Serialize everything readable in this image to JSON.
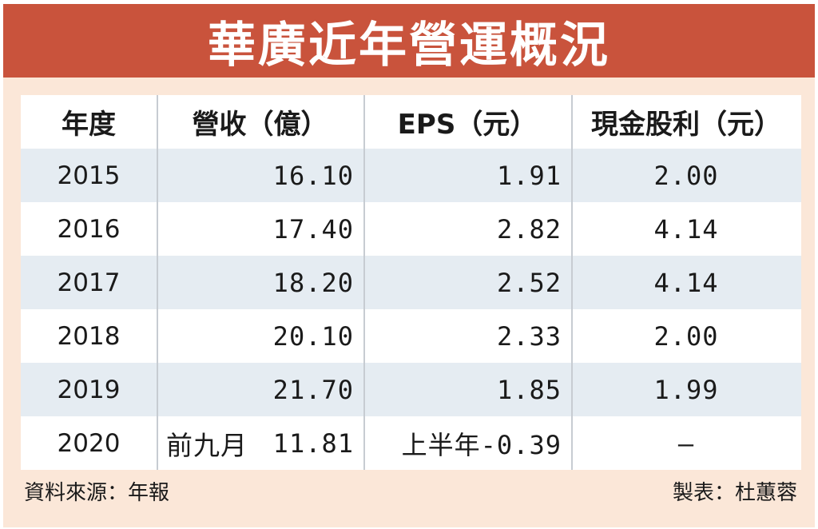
{
  "title": "華廣近年營運概況",
  "headers": {
    "year": "年度",
    "revenue": "營收（億）",
    "eps": "EPS（元）",
    "dividend": "現金股利（元）"
  },
  "rows": [
    {
      "year": "2015",
      "revenue": "16.10",
      "eps": "1.91",
      "dividend": "2.00"
    },
    {
      "year": "2016",
      "revenue": "17.40",
      "eps": "2.82",
      "dividend": "4.14"
    },
    {
      "year": "2017",
      "revenue": "18.20",
      "eps": "2.52",
      "dividend": "4.14"
    },
    {
      "year": "2018",
      "revenue": "20.10",
      "eps": "2.33",
      "dividend": "2.00"
    },
    {
      "year": "2019",
      "revenue": "21.70",
      "eps": "1.85",
      "dividend": "1.99"
    },
    {
      "year": "2020",
      "revenue_prefix": "前九月",
      "revenue": "11.81",
      "eps": "上半年-0.39",
      "dividend": "–"
    }
  ],
  "footer": {
    "source": "資料來源：年報",
    "author": "製表：杜蕙蓉"
  },
  "colors": {
    "title_bar": "#c9533c",
    "frame": "#fbe7d8",
    "stripe": "#e5ecf2"
  }
}
